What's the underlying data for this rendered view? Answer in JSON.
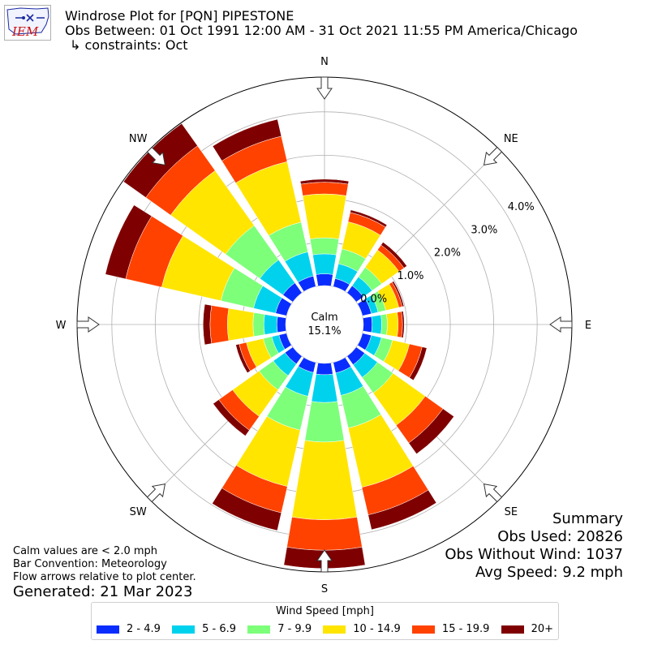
{
  "header": {
    "logo_text": "IEM",
    "title": "Windrose Plot for [PQN] PIPESTONE",
    "obs_between": "Obs Between: 01 Oct 1991 12:00 AM - 31 Oct 2021 11:55 PM America/Chicago",
    "constraints": "↳ constraints: Oct"
  },
  "calm": {
    "label": "Calm",
    "value": "15.1%"
  },
  "notes": {
    "calm_def": "Calm values are < 2.0 mph",
    "bar_convention": "Bar Convention: Meteorology",
    "flow_arrows": "Flow arrows relative to plot center.",
    "generated": "Generated: 21 Mar 2023"
  },
  "summary": {
    "title": "Summary",
    "obs_used": "Obs Used: 20826",
    "obs_without_wind": "Obs Without Wind: 1037",
    "avg_speed": "Avg Speed: 9.2 mph"
  },
  "legend": {
    "title": "Wind Speed [mph]"
  },
  "chart_data": {
    "type": "windrose",
    "directions": [
      "N",
      "NNE",
      "NE",
      "ENE",
      "E",
      "ESE",
      "SE",
      "SSE",
      "S",
      "SSW",
      "SW",
      "WSW",
      "W",
      "WNW",
      "NW",
      "NNW"
    ],
    "direction_labels": [
      "N",
      "NE",
      "E",
      "SE",
      "S",
      "SW",
      "W",
      "NW"
    ],
    "radial_ticks": [
      "0.0%",
      "1.0%",
      "2.0%",
      "3.0%",
      "4.0%"
    ],
    "radial_range_percent": [
      0,
      4.8
    ],
    "calm_percent": 15.1,
    "bins": [
      {
        "label": "2 - 4.9",
        "color": "#0a2dff"
      },
      {
        "label": "5 - 6.9",
        "color": "#00d2ee"
      },
      {
        "label": "7 - 9.9",
        "color": "#7dff7a"
      },
      {
        "label": "10 - 14.9",
        "color": "#ffe500"
      },
      {
        "label": "15 - 19.9",
        "color": "#ff4200"
      },
      {
        "label": "20+",
        "color": "#7f0000"
      }
    ],
    "cumulative_percent_by_direction": [
      [
        0.27,
        0.73,
        1.1,
        2.11,
        2.38,
        2.45
      ],
      [
        0.19,
        0.54,
        0.89,
        1.53,
        1.75,
        1.81
      ],
      [
        0.2,
        0.45,
        0.72,
        1.21,
        1.35,
        1.43
      ],
      [
        0.21,
        0.37,
        0.55,
        0.86,
        0.94,
        0.98
      ],
      [
        0.2,
        0.42,
        0.55,
        0.8,
        0.9,
        0.94
      ],
      [
        0.21,
        0.45,
        0.71,
        1.11,
        1.41,
        1.52
      ],
      [
        0.24,
        0.6,
        1.04,
        1.95,
        2.45,
        2.76
      ],
      [
        0.25,
        0.78,
        1.55,
        2.95,
        3.6,
        3.95
      ],
      [
        0.26,
        0.9,
        1.81,
        3.6,
        4.3,
        4.72
      ],
      [
        0.24,
        0.8,
        1.6,
        2.93,
        3.55,
        3.97
      ],
      [
        0.22,
        0.55,
        0.95,
        1.7,
        2.09,
        2.25
      ],
      [
        0.18,
        0.35,
        0.55,
        0.95,
        1.12,
        1.2
      ],
      [
        0.2,
        0.5,
        0.75,
        1.34,
        1.74,
        1.9
      ],
      [
        0.26,
        0.78,
        1.55,
        2.95,
        3.8,
        4.28
      ],
      [
        0.28,
        0.93,
        1.9,
        3.45,
        4.15,
        4.78
      ],
      [
        0.25,
        0.82,
        1.52,
        2.95,
        3.55,
        3.95
      ]
    ]
  }
}
